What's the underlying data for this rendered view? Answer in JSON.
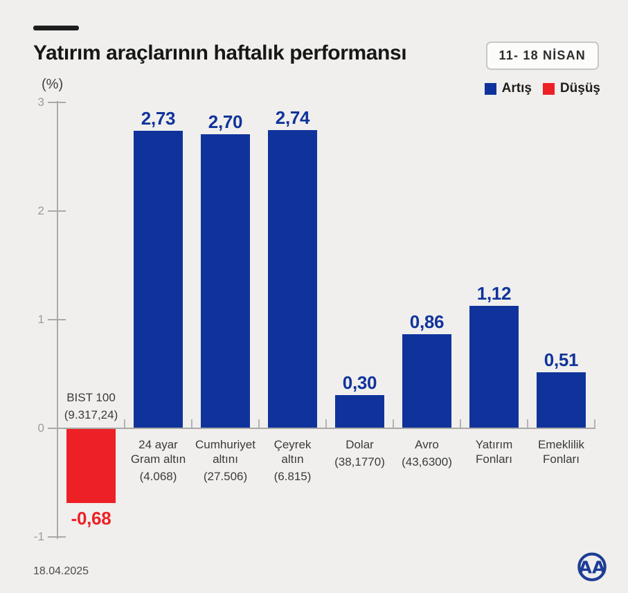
{
  "header": {
    "title": "Yatırım araçlarının haftalık performansı",
    "date_badge": "11- 18 NİSAN"
  },
  "legend": {
    "items": [
      {
        "label": "Artış",
        "color": "#10339b"
      },
      {
        "label": "Düşüş",
        "color": "#ed2025"
      }
    ]
  },
  "chart_data": {
    "type": "bar",
    "title": "Yatırım araçlarının haftalık performansı",
    "date_range": "11- 18 NİSAN",
    "unit_label": "(%)",
    "ylim": [
      -1,
      3
    ],
    "yticks": [
      3,
      2,
      1,
      0,
      -1
    ],
    "grid": false,
    "legend_position": "top-right",
    "colors": {
      "increase": "#10339b",
      "decrease": "#ed2025"
    },
    "bars": [
      {
        "key": "bist-100",
        "name_lines": [
          "BIST 100"
        ],
        "detail": "(9.317,24)",
        "value": -0.68,
        "value_display": "-0,68",
        "direction": "decrease",
        "label_placement": "above-axis"
      },
      {
        "key": "24-ayar-gram-altin",
        "name_lines": [
          "24 ayar",
          "Gram altın"
        ],
        "detail": "(4.068)",
        "value": 2.73,
        "value_display": "2,73",
        "direction": "increase",
        "label_placement": "below-axis"
      },
      {
        "key": "cumhuriyet-altini",
        "name_lines": [
          "Cumhuriyet",
          "altını"
        ],
        "detail": "(27.506)",
        "value": 2.7,
        "value_display": "2,70",
        "direction": "increase",
        "label_placement": "below-axis"
      },
      {
        "key": "ceyrek-altin",
        "name_lines": [
          "Çeyrek",
          "altın"
        ],
        "detail": "(6.815)",
        "value": 2.74,
        "value_display": "2,74",
        "direction": "increase",
        "label_placement": "below-axis"
      },
      {
        "key": "dolar",
        "name_lines": [
          "Dolar"
        ],
        "detail": "(38,1770)",
        "value": 0.3,
        "value_display": "0,30",
        "direction": "increase",
        "label_placement": "below-axis"
      },
      {
        "key": "avro",
        "name_lines": [
          "Avro"
        ],
        "detail": "(43,6300)",
        "value": 0.86,
        "value_display": "0,86",
        "direction": "increase",
        "label_placement": "below-axis"
      },
      {
        "key": "yatirim-fonlari",
        "name_lines": [
          "Yatırım",
          "Fonları"
        ],
        "detail": null,
        "value": 1.12,
        "value_display": "1,12",
        "direction": "increase",
        "label_placement": "below-axis"
      },
      {
        "key": "emeklilik-fonlari",
        "name_lines": [
          "Emeklilik",
          "Fonları"
        ],
        "detail": null,
        "value": 0.51,
        "value_display": "0,51",
        "direction": "increase",
        "label_placement": "below-axis"
      }
    ]
  },
  "footer": {
    "date": "18.04.2025",
    "logo_text": "AA"
  }
}
